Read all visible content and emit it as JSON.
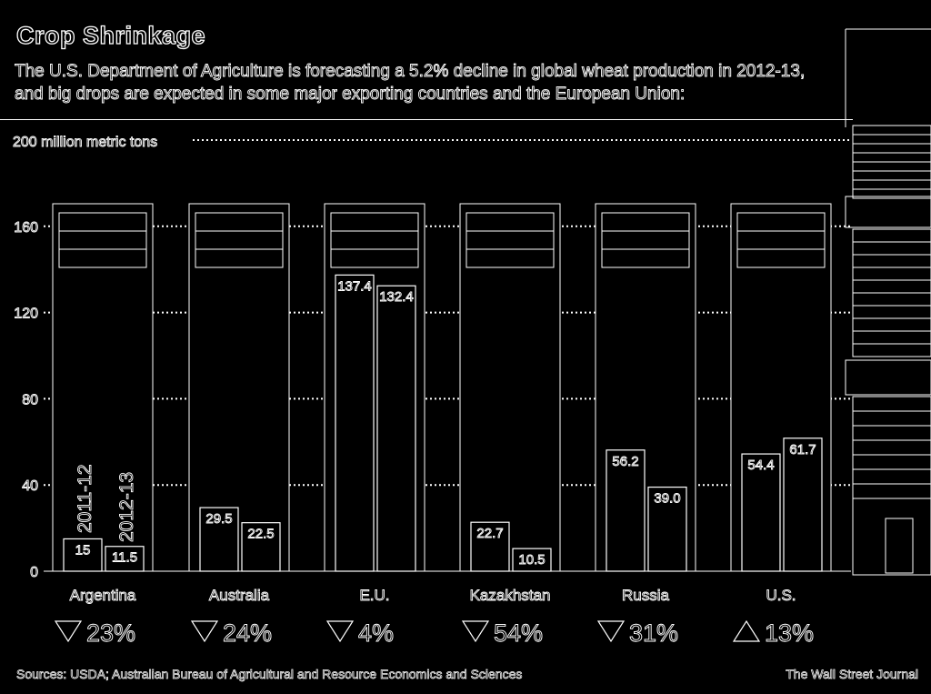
{
  "title": "Crop Shrinkage",
  "subtitle": "The U.S. Department of Agriculture is forecasting a 5.2% decline in global wheat production in 2012-13, and big drops are expected in some major exporting countries and the European Union:",
  "source": "Sources: USDA; Australian Bureau of Agricultural and Resource Economics and Sciences",
  "credit": "The Wall Street Journal",
  "chart_data": {
    "type": "bar",
    "categories": [
      "Argentina",
      "Australia",
      "E.U.",
      "Kazakhstan",
      "Russia",
      "U.S."
    ],
    "series": [
      {
        "name": "2011-12",
        "values": [
          15,
          29.5,
          137.4,
          22.7,
          56.2,
          54.4
        ]
      },
      {
        "name": "2012-13",
        "values": [
          11.5,
          22.5,
          132.4,
          10.5,
          39.0,
          61.7
        ]
      }
    ],
    "value_labels": [
      [
        "15",
        "11.5"
      ],
      [
        "29.5",
        "22.5"
      ],
      [
        "137.4",
        "132.4"
      ],
      [
        "22.7",
        "10.5"
      ],
      [
        "56.2",
        "39.0"
      ],
      [
        "54.4",
        "61.7"
      ]
    ],
    "changes": [
      {
        "direction": "down",
        "text": "23%"
      },
      {
        "direction": "down",
        "text": "24%"
      },
      {
        "direction": "down",
        "text": "4%"
      },
      {
        "direction": "down",
        "text": "54%"
      },
      {
        "direction": "down",
        "text": "31%"
      },
      {
        "direction": "up",
        "text": "13%"
      }
    ],
    "flag_icons": [
      "argentina-flag-icon",
      "australia-flag-icon",
      "eu-flag-icon",
      "kazakhstan-flag-icon",
      "russia-flag-icon",
      "us-flag-icon"
    ],
    "ylim": [
      0,
      200
    ],
    "yticks": [
      0,
      40,
      80,
      120,
      160
    ],
    "ytick_labels": [
      "0",
      "40",
      "80",
      "120",
      "160"
    ],
    "top_label": "200 million metric tons",
    "grid": true
  }
}
